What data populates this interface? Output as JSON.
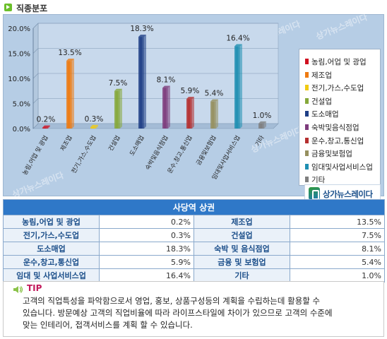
{
  "section_title": "직종분포",
  "chart_data": {
    "type": "bar",
    "categories": [
      "농림,어업 및 광업",
      "제조업",
      "전기,가스,수도업",
      "건설업",
      "도소매업",
      "숙박및음식점업",
      "운수,창고,통신업",
      "금융및보험업",
      "임대및사업서비스업",
      "기타"
    ],
    "values": [
      0.2,
      13.5,
      0.3,
      7.5,
      18.3,
      8.1,
      5.9,
      5.4,
      16.4,
      1.0
    ],
    "data_labels": [
      "0.2%",
      "13.5%",
      "0.3%",
      "7.5%",
      "18.3%",
      "8.1%",
      "5.9%",
      "5.4%",
      "16.4%",
      "1.0%"
    ],
    "colors": [
      "#d01020",
      "#ee7a10",
      "#f1cb12",
      "#86a83a",
      "#1f3f86",
      "#7e3c7c",
      "#b52f2f",
      "#96905f",
      "#1f8fb2",
      "#7f7f7f"
    ],
    "ylim": [
      0,
      20
    ],
    "yticks": [
      "0.0%",
      "5.0%",
      "10.0%",
      "15.0%",
      "20.0%"
    ],
    "grid": true,
    "legend_position": "right",
    "legend": [
      "농림,어업 및 광업",
      "제조업",
      "전기,가스,수도업",
      "건설업",
      "도소매업",
      "숙박및음식점업",
      "운수,창고,통신업",
      "금융및보험업",
      "임대및사업서비스업",
      "기타"
    ]
  },
  "watermark_text": "상가뉴스레이다",
  "brand": {
    "name": "상가뉴스레이다"
  },
  "table": {
    "header": "사당역 상권",
    "rows": [
      {
        "l1": "농림,어업 및 광업",
        "v1": "0.2%",
        "l2": "제조업",
        "v2": "13.5%"
      },
      {
        "l1": "전기,가스,수도업",
        "v1": "0.3%",
        "l2": "건설업",
        "v2": "7.5%"
      },
      {
        "l1": "도소매업",
        "v1": "18.3%",
        "l2": "숙박 및 음식점업",
        "v2": "8.1%"
      },
      {
        "l1": "운수,창고,통신업",
        "v1": "5.9%",
        "l2": "금융 및 보험업",
        "v2": "5.4%"
      },
      {
        "l1": "임대 및 사업서비스업",
        "v1": "16.4%",
        "l2": "기타",
        "v2": "1.0%"
      }
    ]
  },
  "tip": {
    "label": "TIP",
    "lines": [
      "고객의 직업특성을 파악함으로서 영업, 홍보, 상품구성등의 계획을 수립하는데 활용할 수",
      "있습니다. 방문예상 고객의 직업비율에 따라 라이프스타일에 차이가 있으므로 고객의 수준에",
      "맞는 인테리어, 접객서비스를 계획 할 수 있습니다."
    ]
  }
}
